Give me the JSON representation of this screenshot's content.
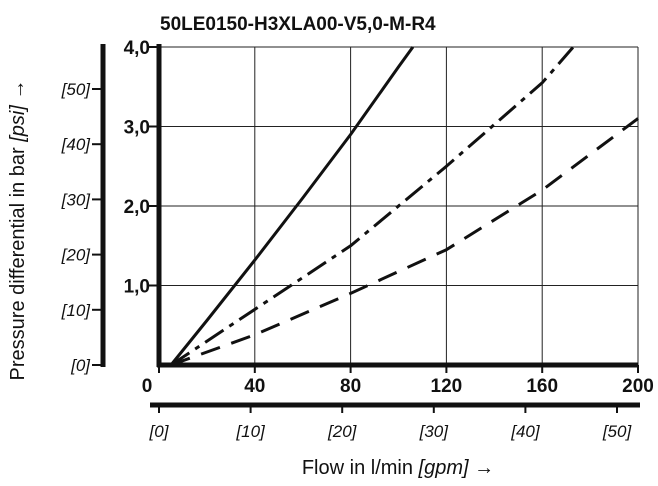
{
  "chart_data": {
    "type": "line",
    "title": "50LE0150-H3XLA00-V5,0-M-R4",
    "xlabel_text": "Flow in l/min ",
    "xlabel_unit": "[gpm]",
    "xlabel_arrow": " →",
    "ylabel_text": "Pressure differential in bar ",
    "ylabel_unit": "[psi]",
    "ylabel_arrow": " →",
    "xlim": [
      0,
      200
    ],
    "ylim": [
      0,
      4.0
    ],
    "x_ticks": [
      0,
      40,
      80,
      120,
      160,
      200
    ],
    "x_tick_labels": [
      "0",
      "40",
      "80",
      "120",
      "160",
      "200"
    ],
    "y_ticks": [
      1.0,
      2.0,
      3.0,
      4.0
    ],
    "y_tick_labels": [
      "1,0",
      "2,0",
      "3,0",
      "4,0"
    ],
    "x_secondary_ticks": [
      0,
      10,
      20,
      30,
      40,
      50
    ],
    "x_secondary_tick_labels": [
      "[0]",
      "[10]",
      "[20]",
      "[30]",
      "[40]",
      "[50]"
    ],
    "y_secondary_ticks": [
      0,
      10,
      20,
      30,
      40,
      50
    ],
    "y_secondary_tick_labels": [
      "[0]",
      "[10]",
      "[20]",
      "[30]",
      "[40]",
      "[50]"
    ],
    "grid": true,
    "series": [
      {
        "style": "solid",
        "x": [
          5,
          20,
          40,
          60,
          80,
          100,
          106
        ],
        "y": [
          0,
          0.56,
          1.32,
          2.1,
          2.9,
          3.75,
          4.0
        ]
      },
      {
        "style": "dash-dot",
        "x": [
          5,
          40,
          80,
          120,
          160,
          173
        ],
        "y": [
          0,
          0.7,
          1.5,
          2.5,
          3.55,
          4.0
        ]
      },
      {
        "style": "dashed",
        "x": [
          5,
          40,
          80,
          120,
          160,
          200
        ],
        "y": [
          0,
          0.38,
          0.9,
          1.45,
          2.2,
          3.1
        ]
      }
    ]
  }
}
